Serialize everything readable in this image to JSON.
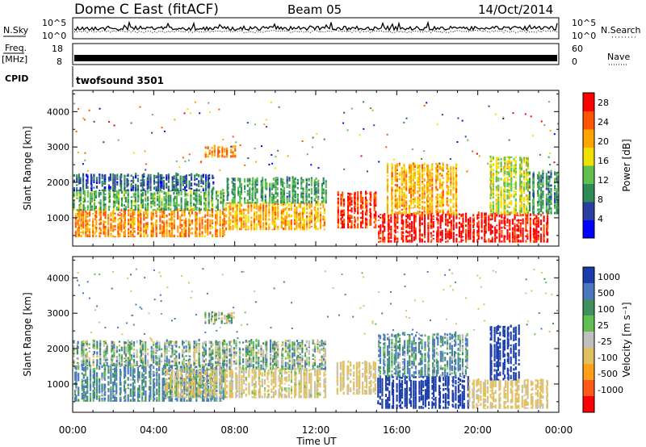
{
  "header": {
    "station": "Dome C East (fitACF)",
    "beam": "Beam 05",
    "date": "14/Oct/2014"
  },
  "strips": {
    "nsky_label": "N.Sky",
    "nsky_ticks": [
      "10^5",
      "10^0"
    ],
    "nsearch_label": "N.Search",
    "nsearch_ticks": [
      "10^5",
      "10^0"
    ],
    "freq_label": "Freq.",
    "freq_unit": "[MHz]",
    "freq_ticks": [
      "18",
      "8"
    ],
    "nave_label": "Nave",
    "nave_ticks": [
      "60",
      "0"
    ],
    "cpid_label": "CPID",
    "cpid_value": "twofsound 3501"
  },
  "colors": {
    "power_scale": [
      "#0000ff",
      "#2a3f9f",
      "#2e8b57",
      "#5fbf4f",
      "#f0e000",
      "#ffa500",
      "#ff5500",
      "#ff0000"
    ],
    "velocity_scale": [
      "#1a3caa",
      "#4a78c0",
      "#3f8f5f",
      "#5fbf4f",
      "#bfbfbf",
      "#e0c060",
      "#ff9f1a",
      "#ff5a1a",
      "#ff0000"
    ]
  },
  "chart_data": [
    {
      "type": "heatmap",
      "title": "",
      "xlabel": "",
      "ylabel": "Slant Range [km]",
      "xlim": [
        "00:00",
        "24:00"
      ],
      "ylim": [
        200,
        4600
      ],
      "x_ticks": [
        "00:00",
        "04:00",
        "08:00",
        "12:00",
        "16:00",
        "20:00",
        "00:00"
      ],
      "y_ticks": [
        "1000",
        "2000",
        "3000",
        "4000"
      ],
      "colorbar": {
        "label": "Power [dB]",
        "ticks": [
          "4",
          "8",
          "12",
          "16",
          "20",
          "24",
          "28"
        ],
        "range": [
          0,
          30
        ]
      },
      "blobs": [
        {
          "t0": 0.0,
          "t1": 7.5,
          "r0": 450,
          "r1": 1200,
          "v": 22
        },
        {
          "t0": 0.0,
          "t1": 7.5,
          "r0": 1200,
          "r1": 1750,
          "v": 12
        },
        {
          "t0": 0.0,
          "t1": 7.0,
          "r0": 1750,
          "r1": 2200,
          "v": 7
        },
        {
          "t0": 7.5,
          "t1": 12.5,
          "r0": 650,
          "r1": 1400,
          "v": 20
        },
        {
          "t0": 7.5,
          "t1": 12.5,
          "r0": 1400,
          "r1": 2100,
          "v": 11
        },
        {
          "t0": 6.5,
          "t1": 8.0,
          "r0": 2700,
          "r1": 3000,
          "v": 22
        },
        {
          "t0": 13.0,
          "t1": 15.0,
          "r0": 700,
          "r1": 1700,
          "v": 26
        },
        {
          "t0": 15.0,
          "t1": 23.5,
          "r0": 300,
          "r1": 1100,
          "v": 28
        },
        {
          "t0": 15.5,
          "t1": 19.0,
          "r0": 1100,
          "r1": 2500,
          "v": 20
        },
        {
          "t0": 20.5,
          "t1": 22.5,
          "r0": 1100,
          "r1": 2700,
          "v": 16
        },
        {
          "t0": 22.5,
          "t1": 24.0,
          "r0": 1100,
          "r1": 2300,
          "v": 10
        }
      ]
    },
    {
      "type": "heatmap",
      "title": "",
      "xlabel": "Time UT",
      "ylabel": "Slant Range [km]",
      "xlim": [
        "00:00",
        "24:00"
      ],
      "ylim": [
        200,
        4600
      ],
      "x_ticks": [
        "00:00",
        "04:00",
        "08:00",
        "12:00",
        "16:00",
        "20:00",
        "00:00"
      ],
      "y_ticks": [
        "1000",
        "2000",
        "3000",
        "4000"
      ],
      "colorbar": {
        "label": "Velocity [m s⁻¹]",
        "ticks": [
          "1000",
          "500",
          "100",
          "25",
          "-25",
          "-100",
          "-500",
          "-1000"
        ],
        "range": [
          -1000,
          1000
        ]
      },
      "blobs": [
        {
          "t0": 0.0,
          "t1": 7.5,
          "r0": 500,
          "r1": 1500,
          "v": 120
        },
        {
          "t0": 0.0,
          "t1": 7.5,
          "r0": 1500,
          "r1": 2200,
          "v": 0
        },
        {
          "t0": 4.5,
          "t1": 12.5,
          "r0": 600,
          "r1": 1400,
          "v": -150
        },
        {
          "t0": 7.0,
          "t1": 12.5,
          "r0": 1400,
          "r1": 2200,
          "v": 0
        },
        {
          "t0": 6.5,
          "t1": 8.0,
          "r0": 2700,
          "r1": 3000,
          "v": -40
        },
        {
          "t0": 13.0,
          "t1": 15.0,
          "r0": 700,
          "r1": 1600,
          "v": -180
        },
        {
          "t0": 15.0,
          "t1": 19.5,
          "r0": 300,
          "r1": 1200,
          "v": 700
        },
        {
          "t0": 15.0,
          "t1": 19.5,
          "r0": 1200,
          "r1": 2400,
          "v": 80
        },
        {
          "t0": 19.5,
          "t1": 23.5,
          "r0": 300,
          "r1": 1100,
          "v": -200
        },
        {
          "t0": 20.5,
          "t1": 22.0,
          "r0": 1100,
          "r1": 2600,
          "v": 800
        }
      ]
    }
  ]
}
